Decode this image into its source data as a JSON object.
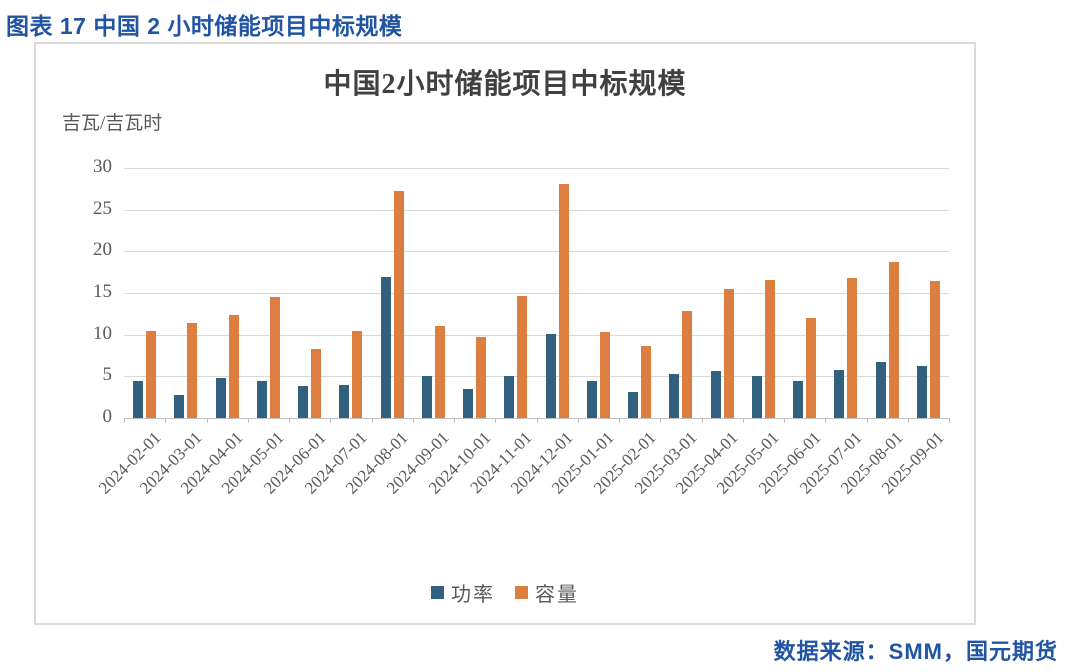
{
  "page": {
    "header_title": "图表 17 中国 2 小时储能项目中标规模",
    "source_text": "数据来源：SMM，国元期货"
  },
  "colors": {
    "accent_blue_text": "#2155A3",
    "series_power": "#31617F",
    "series_capacity": "#DC7E3F",
    "gridline": "#D9D9D9",
    "axis_line": "#BFBFBF",
    "chart_text": "#595959",
    "title_text": "#404040"
  },
  "chart_data": {
    "type": "bar",
    "title": "中国2小时储能项目中标规模",
    "unit_label": "吉瓦/吉瓦时",
    "xlabel": "",
    "ylabel": "吉瓦/吉瓦时",
    "ylim": [
      0,
      30
    ],
    "yticks": [
      0,
      5,
      10,
      15,
      20,
      25,
      30
    ],
    "grid": true,
    "legend_position": "bottom",
    "categories": [
      "2024-02-01",
      "2024-03-01",
      "2024-04-01",
      "2024-05-01",
      "2024-06-01",
      "2024-07-01",
      "2024-08-01",
      "2024-09-01",
      "2024-10-01",
      "2024-11-01",
      "2024-12-01",
      "2025-01-01",
      "2025-02-01",
      "2025-03-01",
      "2025-04-01",
      "2025-05-01",
      "2025-06-01",
      "2025-07-01",
      "2025-08-01",
      "2025-09-01"
    ],
    "series": [
      {
        "name": "功率",
        "color_key": "series_power",
        "values": [
          4.5,
          2.8,
          4.8,
          4.4,
          3.9,
          4.0,
          16.9,
          5.1,
          3.5,
          5.0,
          10.1,
          4.5,
          3.1,
          5.3,
          5.6,
          5.1,
          4.5,
          5.8,
          6.7,
          6.3
        ]
      },
      {
        "name": "容量",
        "color_key": "series_capacity",
        "values": [
          10.5,
          11.4,
          12.4,
          14.5,
          8.3,
          10.4,
          27.3,
          11.1,
          9.7,
          14.6,
          28.1,
          10.3,
          8.6,
          12.9,
          15.5,
          16.6,
          12.0,
          16.8,
          18.7,
          16.4
        ]
      }
    ]
  }
}
